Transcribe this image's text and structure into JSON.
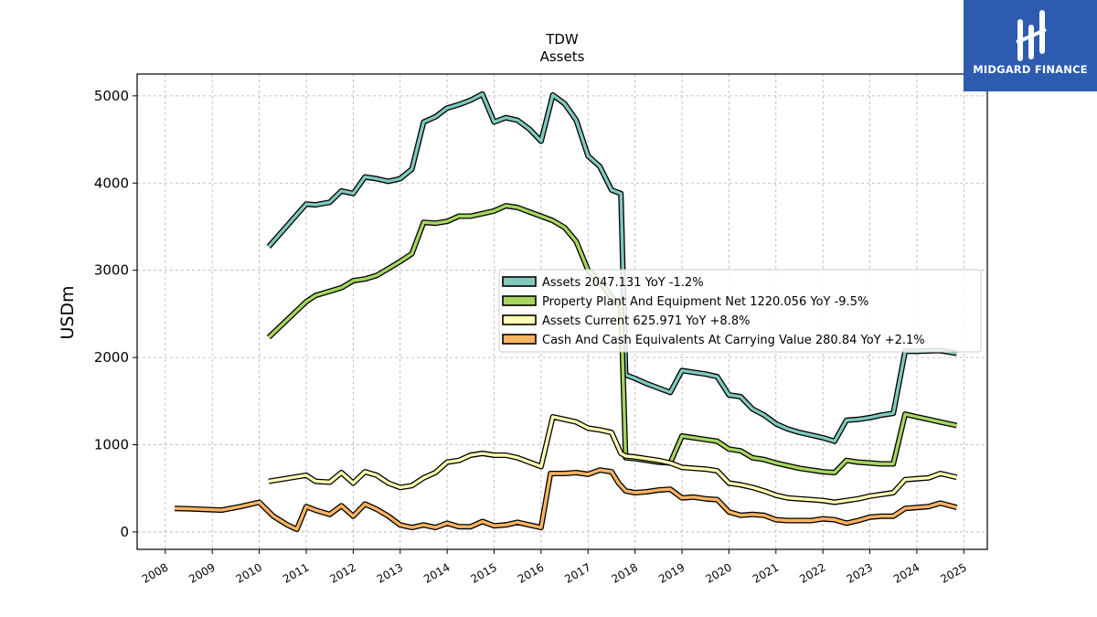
{
  "chart_data": {
    "type": "line",
    "title": "TDW",
    "subtitle": "Assets",
    "xlabel": "",
    "ylabel": "USDm",
    "xlim": [
      2007.4,
      2025.5
    ],
    "ylim": [
      -200,
      5250
    ],
    "x_ticks": [
      "2008",
      "2009",
      "2010",
      "2011",
      "2012",
      "2013",
      "2014",
      "2015",
      "2016",
      "2017",
      "2018",
      "2019",
      "2020",
      "2021",
      "2022",
      "2023",
      "2024",
      "2025"
    ],
    "y_ticks": [
      "0",
      "1000",
      "2000",
      "3000",
      "4000",
      "5000"
    ],
    "grid": true,
    "legend_position": "center-right",
    "series": [
      {
        "name": "Assets",
        "legend_label": "Assets  2047.131 YoY -1.2%",
        "color": "#7fc9bd",
        "x": [
          2010.2,
          2011.0,
          2011.2,
          2011.5,
          2011.75,
          2012.0,
          2012.25,
          2012.5,
          2012.75,
          2013.0,
          2013.25,
          2013.5,
          2013.75,
          2014.0,
          2014.25,
          2014.5,
          2014.75,
          2015.0,
          2015.25,
          2015.5,
          2015.75,
          2016.0,
          2016.25,
          2016.5,
          2016.75,
          2017.0,
          2017.25,
          2017.5,
          2017.7,
          2017.8,
          2018.0,
          2018.25,
          2018.5,
          2018.75,
          2019.0,
          2019.25,
          2019.5,
          2019.75,
          2020.0,
          2020.25,
          2020.5,
          2020.75,
          2021.0,
          2021.25,
          2021.5,
          2021.75,
          2022.0,
          2022.25,
          2022.5,
          2022.75,
          2023.0,
          2023.25,
          2023.5,
          2023.75,
          2024.0,
          2024.25,
          2024.5,
          2024.85
        ],
        "values": [
          3270,
          3760,
          3750,
          3780,
          3910,
          3880,
          4070,
          4050,
          4020,
          4050,
          4160,
          4700,
          4760,
          4860,
          4900,
          4950,
          5020,
          4700,
          4750,
          4720,
          4620,
          4480,
          5010,
          4910,
          4720,
          4310,
          4190,
          3920,
          3880,
          1800,
          1760,
          1700,
          1650,
          1600,
          1850,
          1830,
          1810,
          1780,
          1570,
          1550,
          1410,
          1340,
          1240,
          1180,
          1140,
          1110,
          1080,
          1040,
          1280,
          1290,
          1310,
          1340,
          1360,
          2070,
          2070,
          2075,
          2080,
          2047
        ]
      },
      {
        "name": "Property Plant And Equipment Net",
        "legend_label": "Property Plant And Equipment Net  1220.056 YoY -9.5%",
        "color": "#a6d65f",
        "x": [
          2010.2,
          2011.0,
          2011.2,
          2011.5,
          2011.75,
          2012.0,
          2012.25,
          2012.5,
          2012.75,
          2013.0,
          2013.25,
          2013.5,
          2013.75,
          2014.0,
          2014.25,
          2014.5,
          2014.75,
          2015.0,
          2015.25,
          2015.5,
          2015.75,
          2016.0,
          2016.25,
          2016.5,
          2016.75,
          2017.0,
          2017.25,
          2017.5,
          2017.7,
          2017.8,
          2018.0,
          2018.25,
          2018.5,
          2018.75,
          2019.0,
          2019.25,
          2019.5,
          2019.75,
          2020.0,
          2020.25,
          2020.5,
          2020.75,
          2021.0,
          2021.25,
          2021.5,
          2021.75,
          2022.0,
          2022.25,
          2022.5,
          2022.75,
          2023.0,
          2023.25,
          2023.5,
          2023.75,
          2024.0,
          2024.25,
          2024.5,
          2024.85
        ],
        "values": [
          2230,
          2640,
          2710,
          2760,
          2800,
          2880,
          2900,
          2940,
          3020,
          3100,
          3190,
          3550,
          3540,
          3560,
          3620,
          3620,
          3650,
          3680,
          3740,
          3720,
          3670,
          3620,
          3570,
          3490,
          3330,
          3000,
          2870,
          2690,
          2600,
          850,
          840,
          820,
          800,
          790,
          1100,
          1080,
          1060,
          1040,
          950,
          930,
          850,
          830,
          790,
          760,
          730,
          710,
          690,
          680,
          820,
          800,
          790,
          780,
          780,
          1350,
          1320,
          1290,
          1260,
          1220
        ]
      },
      {
        "name": "Assets Current",
        "legend_label": "Assets Current  625.971 YoY +8.8%",
        "color": "#ffffb3",
        "x": [
          2010.2,
          2011.0,
          2011.2,
          2011.5,
          2011.75,
          2012.0,
          2012.25,
          2012.5,
          2012.75,
          2013.0,
          2013.25,
          2013.5,
          2013.75,
          2014.0,
          2014.25,
          2014.5,
          2014.75,
          2015.0,
          2015.25,
          2015.5,
          2015.75,
          2016.0,
          2016.25,
          2016.5,
          2016.75,
          2017.0,
          2017.25,
          2017.5,
          2017.7,
          2017.8,
          2018.0,
          2018.25,
          2018.5,
          2018.75,
          2019.0,
          2019.25,
          2019.5,
          2019.75,
          2020.0,
          2020.25,
          2020.5,
          2020.75,
          2021.0,
          2021.25,
          2021.5,
          2021.75,
          2022.0,
          2022.25,
          2022.5,
          2022.75,
          2023.0,
          2023.25,
          2023.5,
          2023.75,
          2024.0,
          2024.25,
          2024.5,
          2024.85
        ],
        "values": [
          580,
          650,
          580,
          570,
          680,
          560,
          690,
          650,
          560,
          510,
          530,
          620,
          680,
          800,
          820,
          880,
          900,
          880,
          880,
          850,
          800,
          750,
          1320,
          1290,
          1260,
          1190,
          1170,
          1140,
          900,
          870,
          860,
          840,
          820,
          790,
          740,
          730,
          720,
          700,
          560,
          540,
          510,
          470,
          420,
          390,
          380,
          370,
          360,
          340,
          360,
          380,
          410,
          430,
          450,
          600,
          610,
          620,
          670,
          626
        ]
      },
      {
        "name": "Cash And Cash Equivalents At Carrying Value",
        "legend_label": "Cash And Cash Equivalents At Carrying Value  280.84 YoY +2.1%",
        "color": "#fdb462",
        "x": [
          2008.2,
          2008.5,
          2009.2,
          2009.6,
          2010.0,
          2010.3,
          2010.6,
          2010.8,
          2011.0,
          2011.2,
          2011.5,
          2011.75,
          2012.0,
          2012.25,
          2012.5,
          2012.75,
          2013.0,
          2013.25,
          2013.5,
          2013.75,
          2014.0,
          2014.25,
          2014.5,
          2014.75,
          2015.0,
          2015.25,
          2015.5,
          2015.75,
          2016.0,
          2016.2,
          2016.5,
          2016.75,
          2017.0,
          2017.25,
          2017.5,
          2017.65,
          2017.8,
          2018.0,
          2018.25,
          2018.5,
          2018.75,
          2019.0,
          2019.25,
          2019.5,
          2019.75,
          2020.0,
          2020.25,
          2020.5,
          2020.75,
          2021.0,
          2021.25,
          2021.5,
          2021.75,
          2022.0,
          2022.25,
          2022.5,
          2022.75,
          2023.0,
          2023.25,
          2023.5,
          2023.75,
          2024.0,
          2024.25,
          2024.5,
          2024.85
        ],
        "values": [
          270,
          265,
          250,
          290,
          340,
          180,
          80,
          30,
          290,
          250,
          200,
          300,
          180,
          320,
          260,
          180,
          80,
          50,
          80,
          50,
          100,
          60,
          60,
          120,
          70,
          80,
          110,
          80,
          50,
          670,
          670,
          680,
          660,
          710,
          690,
          560,
          470,
          450,
          460,
          480,
          490,
          390,
          400,
          380,
          370,
          230,
          190,
          200,
          190,
          140,
          130,
          130,
          130,
          150,
          140,
          100,
          130,
          170,
          180,
          180,
          270,
          280,
          290,
          330,
          281
        ]
      }
    ]
  },
  "brand": {
    "name": "MIDGARD FINANCE",
    "background": "#2c5bb0"
  }
}
